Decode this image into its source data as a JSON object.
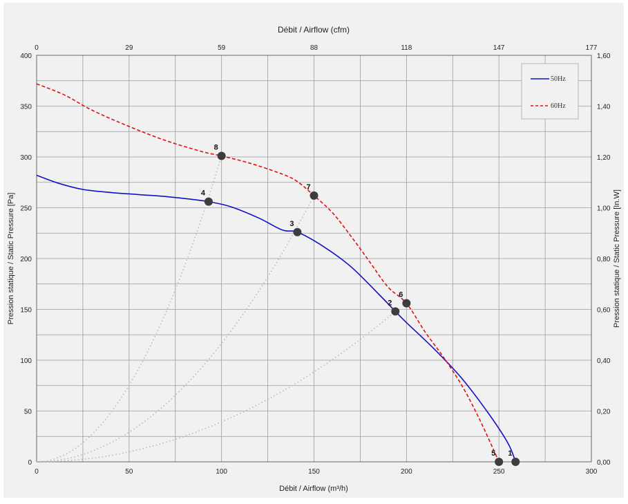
{
  "chart_data": {
    "type": "line",
    "top_title": "Débit / Airflow (cfm)",
    "xlabel": "Débit / Airflow (m³/h)",
    "ylabel": "Pression statique / Static Pressure [Pa]",
    "ylabel_right": "Pression statique / Static Pressure [In.W]",
    "xlim": [
      0,
      300
    ],
    "ylim": [
      0,
      400
    ],
    "x_ticks": [
      0,
      50,
      100,
      150,
      200,
      250,
      300
    ],
    "y_ticks": [
      0,
      50,
      100,
      150,
      200,
      250,
      300,
      350,
      400
    ],
    "x_top_ticks": [
      {
        "value": 0,
        "label": "0"
      },
      {
        "value": 50,
        "label": "29"
      },
      {
        "value": 100,
        "label": "59"
      },
      {
        "value": 150,
        "label": "88"
      },
      {
        "value": 200,
        "label": "118"
      },
      {
        "value": 250,
        "label": "147"
      },
      {
        "value": 300,
        "label": "177"
      }
    ],
    "y_right_ticks": [
      {
        "value": 0,
        "label": "0,00"
      },
      {
        "value": 50,
        "label": "0,20"
      },
      {
        "value": 100,
        "label": "0,40"
      },
      {
        "value": 150,
        "label": "0,60"
      },
      {
        "value": 200,
        "label": "0,80"
      },
      {
        "value": 250,
        "label": "1,00"
      },
      {
        "value": 300,
        "label": "1,20"
      },
      {
        "value": 350,
        "label": "1,40"
      },
      {
        "value": 400,
        "label": "1,60"
      }
    ],
    "grid": true,
    "legend_position": "top-right",
    "series": [
      {
        "name": "50Hz",
        "color": "#1010c8",
        "dash": "solid",
        "points": [
          [
            0,
            282
          ],
          [
            12,
            274
          ],
          [
            25,
            268
          ],
          [
            40,
            265
          ],
          [
            55,
            263
          ],
          [
            70,
            261
          ],
          [
            85,
            258
          ],
          [
            93,
            256
          ],
          [
            105,
            251
          ],
          [
            120,
            240
          ],
          [
            133,
            228
          ],
          [
            141,
            226
          ],
          [
            155,
            212
          ],
          [
            170,
            192
          ],
          [
            185,
            165
          ],
          [
            194,
            148
          ],
          [
            200,
            137
          ],
          [
            215,
            111
          ],
          [
            230,
            82
          ],
          [
            245,
            46
          ],
          [
            255,
            18
          ],
          [
            259,
            0
          ]
        ]
      },
      {
        "name": "60Hz",
        "color": "#e01010",
        "dash": "dashed",
        "points": [
          [
            0,
            372
          ],
          [
            15,
            361
          ],
          [
            30,
            346
          ],
          [
            50,
            330
          ],
          [
            70,
            316
          ],
          [
            90,
            305
          ],
          [
            100,
            301
          ],
          [
            115,
            294
          ],
          [
            130,
            285
          ],
          [
            140,
            277
          ],
          [
            150,
            262
          ],
          [
            160,
            245
          ],
          [
            170,
            222
          ],
          [
            180,
            197
          ],
          [
            190,
            172
          ],
          [
            200,
            156
          ],
          [
            210,
            128
          ],
          [
            220,
            103
          ],
          [
            230,
            75
          ],
          [
            240,
            40
          ],
          [
            250,
            0
          ]
        ]
      }
    ],
    "operating_points": [
      {
        "label": "1",
        "x": 259,
        "y": 0
      },
      {
        "label": "2",
        "x": 194,
        "y": 148
      },
      {
        "label": "3",
        "x": 141,
        "y": 226
      },
      {
        "label": "4",
        "x": 93,
        "y": 256
      },
      {
        "label": "5",
        "x": 250,
        "y": 0
      },
      {
        "label": "6",
        "x": 200,
        "y": 156
      },
      {
        "label": "7",
        "x": 150,
        "y": 262
      },
      {
        "label": "8",
        "x": 100,
        "y": 301
      }
    ],
    "system_curves": [
      {
        "through_x": 194,
        "through_y": 148
      },
      {
        "through_x": 150,
        "through_y": 262
      },
      {
        "through_x": 100,
        "through_y": 301
      }
    ]
  }
}
